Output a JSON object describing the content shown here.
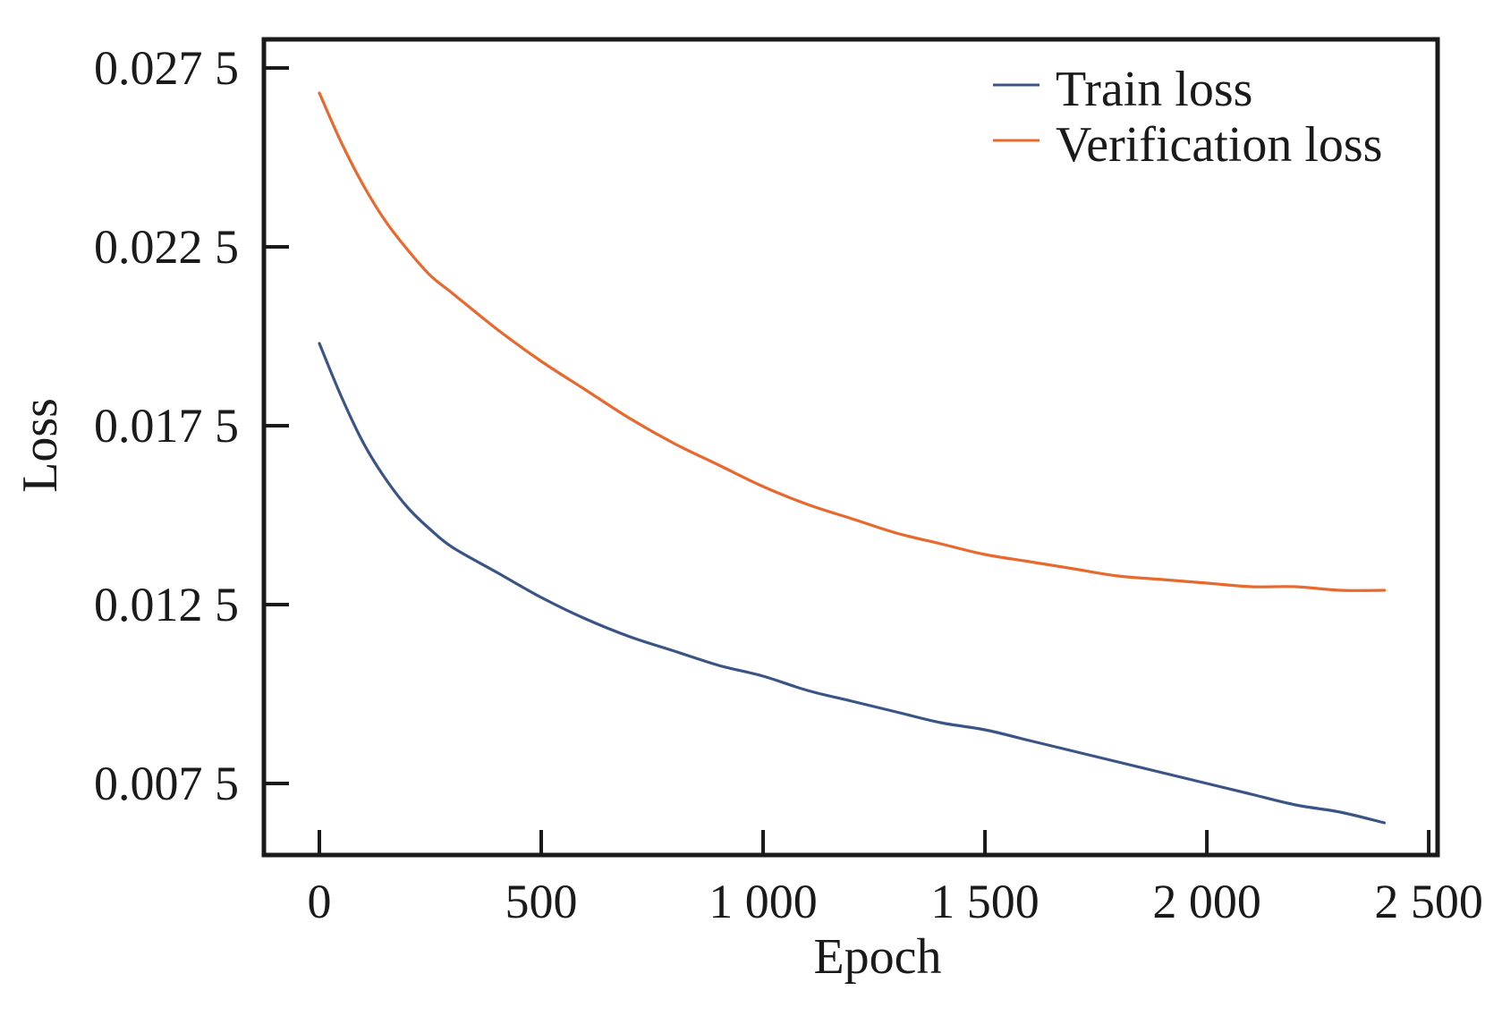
{
  "chart_data": {
    "type": "line",
    "title": "",
    "xlabel": "Epoch",
    "ylabel": "Loss",
    "xlim": [
      -125,
      2520
    ],
    "ylim": [
      0.0055,
      0.0283
    ],
    "xticks": [
      0,
      500,
      1000,
      1500,
      2000,
      2500
    ],
    "xtick_labels": [
      "0",
      "500",
      "1 000",
      "1 500",
      "2 000",
      "2 500"
    ],
    "yticks": [
      0.0075,
      0.0125,
      0.0175,
      0.0225,
      0.0275
    ],
    "ytick_labels": [
      "0.007 5",
      "0.012 5",
      "0.017 5",
      "0.022 5",
      "0.027 5"
    ],
    "grid": false,
    "legend_position": "top-right",
    "series": [
      {
        "name": "Train loss",
        "color": "#3a5585",
        "x": [
          0,
          50,
          100,
          150,
          200,
          250,
          300,
          400,
          500,
          600,
          700,
          800,
          900,
          1000,
          1100,
          1200,
          1300,
          1400,
          1500,
          1600,
          1700,
          1800,
          1900,
          2000,
          2100,
          2200,
          2300,
          2400
        ],
        "y": [
          0.0198,
          0.0183,
          0.017,
          0.016,
          0.0152,
          0.0146,
          0.0141,
          0.0134,
          0.0127,
          0.0121,
          0.0116,
          0.0112,
          0.0108,
          0.0105,
          0.0101,
          0.0098,
          0.0095,
          0.0092,
          0.009,
          0.0087,
          0.0084,
          0.0081,
          0.0078,
          0.0075,
          0.0072,
          0.0069,
          0.0067,
          0.0064
        ]
      },
      {
        "name": "Verification loss",
        "color": "#e8692e",
        "x": [
          0,
          50,
          100,
          150,
          200,
          250,
          300,
          400,
          500,
          600,
          700,
          800,
          900,
          1000,
          1100,
          1200,
          1300,
          1400,
          1500,
          1600,
          1700,
          1800,
          1900,
          2000,
          2100,
          2200,
          2300,
          2400
        ],
        "y": [
          0.0268,
          0.0254,
          0.0242,
          0.0232,
          0.0224,
          0.0217,
          0.0212,
          0.0202,
          0.0193,
          0.0185,
          0.0177,
          0.017,
          0.0164,
          0.0158,
          0.0153,
          0.0149,
          0.0145,
          0.0142,
          0.0139,
          0.0137,
          0.0135,
          0.0133,
          0.0132,
          0.0131,
          0.013,
          0.013,
          0.0129,
          0.0129
        ]
      }
    ]
  }
}
